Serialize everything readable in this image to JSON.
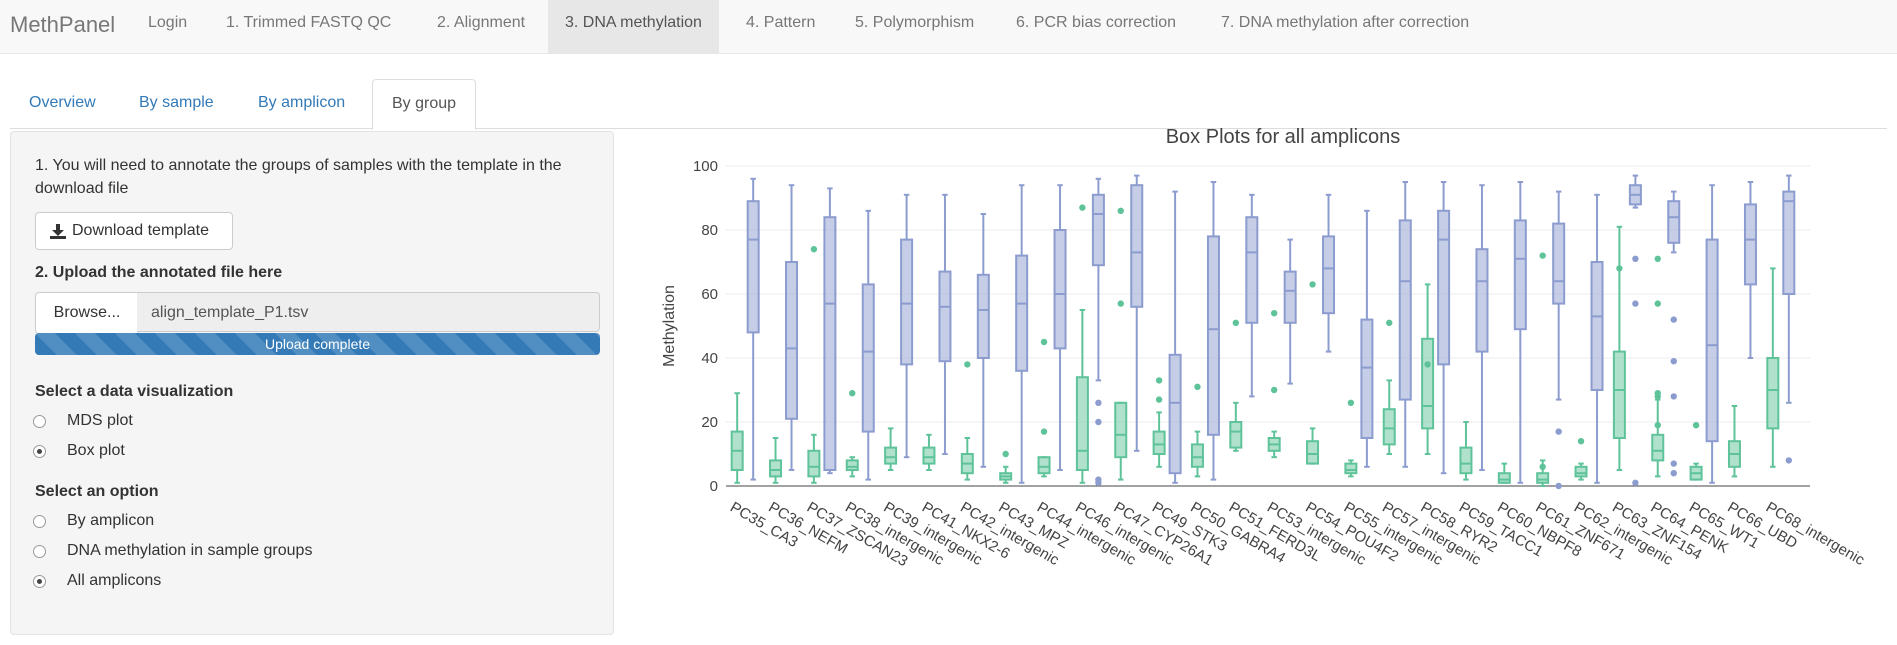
{
  "navbar": {
    "brand": "MethPanel",
    "items": [
      {
        "label": "Login"
      },
      {
        "label": "1. Trimmed FASTQ QC"
      },
      {
        "label": "2. Alignment"
      },
      {
        "label": "3. DNA methylation",
        "active": true
      },
      {
        "label": "4. Pattern"
      },
      {
        "label": "5. Polymorphism"
      },
      {
        "label": "6. PCR bias correction"
      },
      {
        "label": "7. DNA methylation after correction"
      }
    ]
  },
  "tabs": [
    {
      "label": "Overview"
    },
    {
      "label": "By sample"
    },
    {
      "label": "By amplicon"
    },
    {
      "label": "By group",
      "active": true
    }
  ],
  "sidebar": {
    "instruction_1": "1. You will need to annotate the groups of samples with the template in the download file",
    "download_button": "Download template",
    "upload_label": "2. Upload the annotated file here",
    "browse_button": "Browse...",
    "file_name": "align_template_P1.tsv",
    "upload_status": "Upload complete",
    "upload_progress": 1.0,
    "viz_label": "Select a data visualization",
    "viz_options": [
      {
        "label": "MDS plot",
        "checked": false
      },
      {
        "label": "Box plot",
        "checked": true
      }
    ],
    "option_label": "Select an option",
    "options": [
      {
        "label": "By amplicon",
        "checked": false
      },
      {
        "label": "DNA methylation in sample groups",
        "checked": false
      },
      {
        "label": "All amplicons",
        "checked": true
      }
    ]
  },
  "colors": {
    "series_a": "#8c9ccf",
    "series_b": "#5fc39a",
    "link": "#337ab7"
  },
  "chart_data": {
    "type": "box",
    "title": "Box Plots for all amplicons",
    "ylabel": "Methylation",
    "ylim": [
      0,
      100
    ],
    "yticks": [
      0,
      20,
      40,
      60,
      80,
      100
    ],
    "categories": [
      "PC35_CA3",
      "PC36_NEFM",
      "PC37_ZSCAN23",
      "PC38_intergenic",
      "PC39_intergenic",
      "PC41_NKX2-6",
      "PC42_intergenic",
      "PC43_MPZ",
      "PC44_intergenic",
      "PC46_intergenic",
      "PC47_CYP26A1",
      "PC49_STK3",
      "PC50_GABRA4",
      "PC51_FERD3L",
      "PC53_intergenic",
      "PC54_POU4F2",
      "PC55_intergenic",
      "PC57_intergenic",
      "PC58_RYR2",
      "PC59_TACC1",
      "PC60_NBPF8",
      "PC61_ZNF671",
      "PC62_intergenic",
      "PC63_ZNF154",
      "PC64_PENK",
      "PC65_WT1",
      "PC66_UBD",
      "PC68_intergenic"
    ],
    "series": [
      {
        "color": "#5fc39a",
        "boxes": [
          [
            1,
            5,
            11,
            17,
            29
          ],
          [
            1,
            3,
            5,
            8,
            15
          ],
          [
            1,
            3,
            6,
            11,
            16
          ],
          [
            3,
            5,
            6,
            8,
            9
          ],
          [
            5,
            7,
            9,
            12,
            18
          ],
          [
            5,
            7,
            9,
            12,
            16
          ],
          [
            2,
            4,
            7,
            10,
            15
          ],
          [
            1,
            2,
            3,
            4,
            6
          ],
          [
            3,
            4,
            6,
            9,
            9
          ],
          [
            1,
            5,
            11,
            34,
            55
          ],
          [
            2,
            9,
            16,
            26,
            26
          ],
          [
            6,
            10,
            13,
            17,
            23
          ],
          [
            3,
            6,
            9,
            13,
            17
          ],
          [
            11,
            12,
            17,
            20,
            26
          ],
          [
            9,
            11,
            13,
            15,
            17
          ],
          [
            7,
            7,
            10,
            14,
            18
          ],
          [
            3,
            4,
            5,
            7,
            8
          ],
          [
            10,
            13,
            18,
            24,
            33
          ],
          [
            10,
            18,
            25,
            46,
            63
          ],
          [
            2,
            4,
            7,
            12,
            20
          ],
          [
            1,
            1,
            2,
            4,
            7
          ],
          [
            0,
            1,
            2,
            4,
            8
          ],
          [
            2,
            3,
            4,
            6,
            7
          ],
          [
            5,
            15,
            30,
            42,
            81
          ],
          [
            3,
            8,
            11,
            16,
            27
          ],
          [
            2,
            2,
            4,
            6,
            7
          ],
          [
            3,
            6,
            10,
            14,
            25
          ],
          [
            6,
            18,
            30,
            40,
            68
          ]
        ],
        "outliers": [
          [],
          [],
          [
            74
          ],
          [
            29
          ],
          [],
          [],
          [
            38
          ],
          [
            10
          ],
          [
            17,
            45
          ],
          [
            87
          ],
          [
            86,
            57
          ],
          [
            27,
            33
          ],
          [
            31
          ],
          [
            51
          ],
          [
            30,
            54
          ],
          [
            63
          ],
          [
            26
          ],
          [
            51
          ],
          [
            38
          ],
          [],
          [],
          [
            72,
            6
          ],
          [
            14
          ],
          [
            68
          ],
          [
            57,
            71,
            29,
            28,
            19
          ],
          [
            19
          ],
          [],
          []
        ]
      },
      {
        "color": "#8c9ccf",
        "boxes": [
          [
            2,
            48,
            77,
            89,
            96
          ],
          [
            5,
            21,
            43,
            70,
            94
          ],
          [
            4,
            5,
            57,
            84,
            93
          ],
          [
            2,
            17,
            42,
            63,
            86
          ],
          [
            9,
            38,
            57,
            77,
            91
          ],
          [
            10,
            39,
            56,
            67,
            91
          ],
          [
            6,
            40,
            55,
            66,
            85
          ],
          [
            1,
            36,
            57,
            72,
            94
          ],
          [
            5,
            43,
            60,
            80,
            94
          ],
          [
            33,
            69,
            85,
            91,
            96
          ],
          [
            11,
            56,
            73,
            94,
            97
          ],
          [
            1,
            4,
            26,
            41,
            92
          ],
          [
            2,
            16,
            49,
            78,
            95
          ],
          [
            28,
            51,
            73,
            84,
            91
          ],
          [
            32,
            51,
            61,
            67,
            77
          ],
          [
            42,
            54,
            68,
            78,
            91
          ],
          [
            6,
            15,
            37,
            52,
            86
          ],
          [
            6,
            27,
            64,
            83,
            95
          ],
          [
            4,
            38,
            77,
            86,
            95
          ],
          [
            5,
            42,
            64,
            74,
            94
          ],
          [
            1,
            49,
            71,
            83,
            95
          ],
          [
            27,
            57,
            64,
            82,
            92
          ],
          [
            1,
            30,
            53,
            70,
            91
          ],
          [
            87,
            88,
            91,
            94,
            97
          ],
          [
            73,
            76,
            84,
            89,
            92
          ],
          [
            1,
            14,
            44,
            77,
            94
          ],
          [
            40,
            63,
            77,
            88,
            95
          ],
          [
            26,
            60,
            89,
            92,
            97
          ]
        ],
        "outliers": [
          [],
          [],
          [],
          [],
          [],
          [],
          [],
          [],
          [],
          [
            1,
            2,
            20,
            26
          ],
          [],
          [],
          [],
          [],
          [],
          [],
          [],
          [],
          [],
          [],
          [],
          [
            17,
            0
          ],
          [],
          [
            57,
            71,
            1
          ],
          [
            52,
            39,
            28,
            7,
            4
          ],
          [],
          [],
          [
            8
          ]
        ]
      }
    ]
  }
}
